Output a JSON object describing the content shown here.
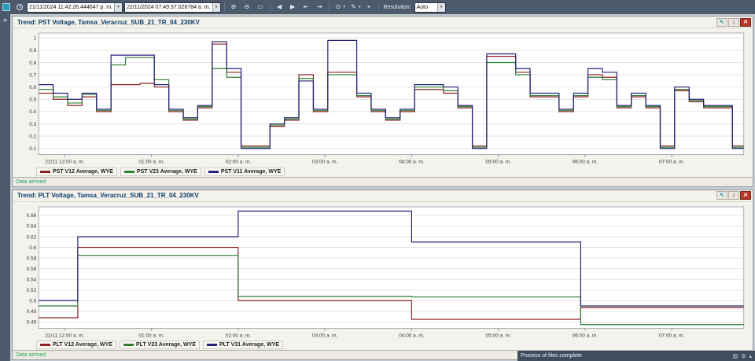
{
  "ui": {
    "glyphs": {
      "dropdown": "▾"
    },
    "panel_controls": {
      "pointer": "↖",
      "updown": "↕",
      "close": "✕"
    }
  },
  "toolbar": {
    "expand_glyph": "»",
    "start_datetime": "21/11/2024 11:42:26.444647 p. m.",
    "end_datetime": "22/11/2024 07:49:37.028784 a. m.",
    "resolution_label": "Resolution:",
    "resolution_value": "Auto",
    "icons": [
      {
        "name": "zoom-in",
        "glyph": "⊕"
      },
      {
        "name": "zoom-out",
        "glyph": "⊖"
      },
      {
        "name": "zoom-window",
        "glyph": "▭"
      },
      {
        "name": "pan-left",
        "glyph": "◀"
      },
      {
        "name": "pan-right",
        "glyph": "▶"
      },
      {
        "name": "jump-start",
        "glyph": "⇤"
      },
      {
        "name": "jump-end",
        "glyph": "⇥"
      },
      {
        "name": "magnifier",
        "glyph": "⊙"
      },
      {
        "name": "marker-pen",
        "glyph": "✎"
      },
      {
        "name": "crosshair",
        "glyph": "⌖"
      }
    ]
  },
  "statusbar": {
    "message": "Process of files complete",
    "icons": [
      {
        "name": "grid",
        "glyph": "▤"
      },
      {
        "name": "gear",
        "glyph": "⚙"
      },
      {
        "name": "up",
        "glyph": "▴"
      }
    ]
  },
  "colors": {
    "series_red": "#8e2323",
    "series_green": "#2e7d32",
    "series_navy": "#23237a",
    "status_text": "#21a35f",
    "toolbar_bg": "#4c5a6b"
  },
  "chart_data": [
    {
      "type": "line",
      "step": true,
      "title": "Trend: PST Voltage, Tamsa_Veracruz_SUB_21_TR_04_230KV",
      "status": "Data arrived",
      "ylim": [
        0.05,
        1.04
      ],
      "yticks": [
        0.1,
        0.2,
        0.3,
        0.4,
        0.5,
        0.6,
        0.7,
        0.8,
        0.9,
        1
      ],
      "x_range_hours": [
        0,
        8.13
      ],
      "x0": 0,
      "dx": 0.16667,
      "xticks": [
        {
          "t": 0.3,
          "label": "22/11 12:00 a. m."
        },
        {
          "t": 1.3,
          "label": "01:00 a. m."
        },
        {
          "t": 2.3,
          "label": "02:00 a. m."
        },
        {
          "t": 3.3,
          "label": "03:00 a. m."
        },
        {
          "t": 4.3,
          "label": "04:00 a. m."
        },
        {
          "t": 5.3,
          "label": "05:00 a. m."
        },
        {
          "t": 6.3,
          "label": "06:00 a. m."
        },
        {
          "t": 7.3,
          "label": "07:00 a. m."
        }
      ],
      "series": [
        {
          "label": "PST V12 Average, WYE",
          "color": "#8e2323",
          "values": [
            0.55,
            0.5,
            0.45,
            0.52,
            0.4,
            0.62,
            0.62,
            0.63,
            0.6,
            0.4,
            0.33,
            0.43,
            0.95,
            0.72,
            0.12,
            0.12,
            0.28,
            0.33,
            0.7,
            0.4,
            0.72,
            0.72,
            0.52,
            0.4,
            0.33,
            0.4,
            0.58,
            0.58,
            0.55,
            0.43,
            0.12,
            0.85,
            0.85,
            0.72,
            0.52,
            0.52,
            0.4,
            0.52,
            0.7,
            0.68,
            0.43,
            0.52,
            0.43,
            0.12,
            0.57,
            0.48,
            0.43,
            0.43,
            0.12
          ]
        },
        {
          "label": "PST V23 Average, WYE",
          "color": "#2e7d32",
          "values": [
            0.58,
            0.52,
            0.47,
            0.54,
            0.41,
            0.78,
            0.84,
            0.84,
            0.66,
            0.41,
            0.34,
            0.44,
            0.75,
            0.68,
            0.11,
            0.11,
            0.29,
            0.34,
            0.67,
            0.41,
            0.7,
            0.7,
            0.53,
            0.41,
            0.34,
            0.41,
            0.6,
            0.6,
            0.57,
            0.44,
            0.11,
            0.8,
            0.8,
            0.7,
            0.53,
            0.53,
            0.41,
            0.53,
            0.68,
            0.66,
            0.44,
            0.53,
            0.44,
            0.11,
            0.58,
            0.49,
            0.44,
            0.44,
            0.11
          ]
        },
        {
          "label": "PST V11 Average, WYE",
          "color": "#23237a",
          "values": [
            0.62,
            0.55,
            0.5,
            0.55,
            0.42,
            0.86,
            0.86,
            0.86,
            0.62,
            0.42,
            0.35,
            0.45,
            0.97,
            0.75,
            0.1,
            0.1,
            0.3,
            0.35,
            0.65,
            0.42,
            0.98,
            0.98,
            0.55,
            0.42,
            0.35,
            0.42,
            0.62,
            0.62,
            0.6,
            0.45,
            0.1,
            0.87,
            0.87,
            0.75,
            0.55,
            0.55,
            0.42,
            0.55,
            0.75,
            0.72,
            0.45,
            0.55,
            0.45,
            0.1,
            0.6,
            0.5,
            0.45,
            0.45,
            0.1
          ]
        }
      ]
    },
    {
      "type": "line",
      "step": true,
      "title": "Trend: PLT Voltage, Tamsa_Veracruz_SUB_21_TR_04_230KV",
      "status": "Data arrived",
      "ylim": [
        0.448,
        0.676
      ],
      "yticks": [
        0.46,
        0.48,
        0.5,
        0.52,
        0.54,
        0.56,
        0.58,
        0.6,
        0.62,
        0.64,
        0.66
      ],
      "x_range_hours": [
        0,
        8.13
      ],
      "times": [
        0,
        0.45,
        2.3,
        4.3,
        6.25
      ],
      "xticks": [
        {
          "t": 0.3,
          "label": "22/11 12:00 a. m."
        },
        {
          "t": 1.3,
          "label": "01:00 a. m."
        },
        {
          "t": 2.3,
          "label": "02:00 a. m."
        },
        {
          "t": 3.3,
          "label": "03:00 a. m."
        },
        {
          "t": 4.3,
          "label": "04:00 a. m."
        },
        {
          "t": 5.3,
          "label": "05:00 a. m."
        },
        {
          "t": 6.3,
          "label": "06:00 a. m."
        },
        {
          "t": 7.3,
          "label": "07:00 a. m."
        }
      ],
      "series": [
        {
          "label": "PLT V12 Average, WYE",
          "color": "#8e2323",
          "values": [
            0.468,
            0.6,
            0.5,
            0.465,
            0.487
          ]
        },
        {
          "label": "PLT V23 Average, WYE",
          "color": "#2e7d32",
          "values": [
            0.49,
            0.585,
            0.508,
            0.507,
            0.455
          ]
        },
        {
          "label": "PLT V31 Average, WYE",
          "color": "#23237a",
          "values": [
            0.5,
            0.62,
            0.668,
            0.61,
            0.49
          ]
        }
      ]
    }
  ]
}
